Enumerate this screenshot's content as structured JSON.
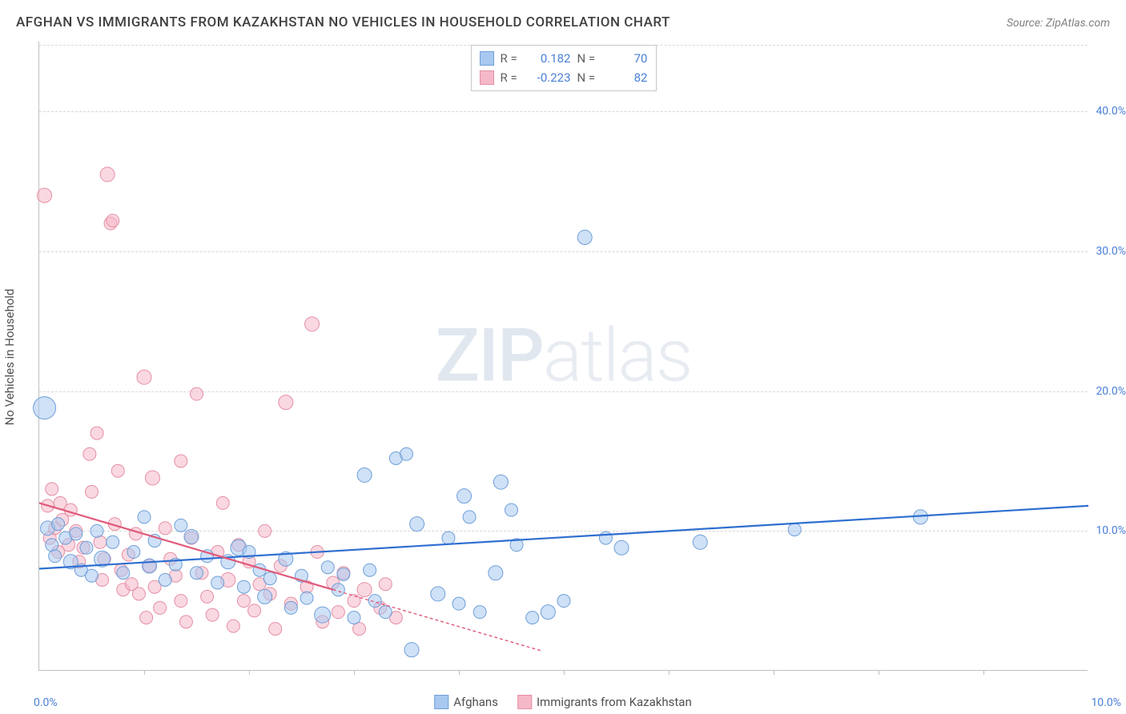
{
  "title": "AFGHAN VS IMMIGRANTS FROM KAZAKHSTAN NO VEHICLES IN HOUSEHOLD CORRELATION CHART",
  "source_label": "Source: ",
  "source_name": "ZipAtlas.com",
  "watermark_a": "ZIP",
  "watermark_b": "atlas",
  "y_axis_title": "No Vehicles in Household",
  "x_origin": "0.0%",
  "x_end": "10.0%",
  "chart": {
    "type": "scatter-correlation",
    "background_color": "#ffffff",
    "grid_color": "#d8d8d8",
    "axis_color": "#c0c0c0",
    "xlim": [
      0,
      10
    ],
    "ylim": [
      0,
      45
    ],
    "x_ticks_at": [
      1,
      2,
      3,
      4,
      5,
      6,
      7,
      8,
      9
    ],
    "y_ticks": [
      {
        "v": 10,
        "label": "10.0%"
      },
      {
        "v": 20,
        "label": "20.0%"
      },
      {
        "v": 30,
        "label": "30.0%"
      },
      {
        "v": 40,
        "label": "40.0%"
      }
    ],
    "series": {
      "afghans": {
        "label": "Afghans",
        "fill": "#a8c8f0",
        "stroke": "#6f9fd8",
        "fill_opacity": 0.55,
        "trend_color": "#2f6fd0",
        "trend": {
          "x1": 0,
          "y1": 7.3,
          "x2": 10,
          "y2": 11.8
        },
        "R_label": "R =",
        "R": "0.182",
        "N_label": "N =",
        "N": "70",
        "points": [
          [
            0.05,
            18.8,
            14
          ],
          [
            0.08,
            10.2,
            9
          ],
          [
            0.12,
            9.0,
            8
          ],
          [
            0.15,
            8.2,
            8
          ],
          [
            0.18,
            10.5,
            8
          ],
          [
            0.25,
            9.5,
            8
          ],
          [
            0.3,
            7.8,
            9
          ],
          [
            0.35,
            9.8,
            8
          ],
          [
            0.4,
            7.2,
            8
          ],
          [
            0.45,
            8.8,
            8
          ],
          [
            0.5,
            6.8,
            8
          ],
          [
            0.55,
            10.0,
            8
          ],
          [
            0.6,
            8.0,
            10
          ],
          [
            0.7,
            9.2,
            8
          ],
          [
            0.8,
            7.0,
            8
          ],
          [
            0.9,
            8.5,
            8
          ],
          [
            1.0,
            11.0,
            8
          ],
          [
            1.05,
            7.5,
            9
          ],
          [
            1.1,
            9.3,
            8
          ],
          [
            1.2,
            6.5,
            8
          ],
          [
            1.3,
            7.6,
            8
          ],
          [
            1.35,
            10.4,
            8
          ],
          [
            1.45,
            9.6,
            9
          ],
          [
            1.5,
            7.0,
            8
          ],
          [
            1.6,
            8.2,
            8
          ],
          [
            1.7,
            6.3,
            8
          ],
          [
            1.8,
            7.8,
            9
          ],
          [
            1.9,
            8.8,
            10
          ],
          [
            1.95,
            6.0,
            8
          ],
          [
            2.0,
            8.5,
            8
          ],
          [
            2.1,
            7.2,
            8
          ],
          [
            2.15,
            5.3,
            9
          ],
          [
            2.2,
            6.6,
            8
          ],
          [
            2.35,
            8.0,
            9
          ],
          [
            2.4,
            4.5,
            8
          ],
          [
            2.5,
            6.8,
            8
          ],
          [
            2.55,
            5.2,
            8
          ],
          [
            2.7,
            4.0,
            10
          ],
          [
            2.75,
            7.4,
            8
          ],
          [
            2.85,
            5.8,
            8
          ],
          [
            2.9,
            6.9,
            8
          ],
          [
            3.0,
            3.8,
            8
          ],
          [
            3.1,
            14.0,
            9
          ],
          [
            3.15,
            7.2,
            8
          ],
          [
            3.2,
            5.0,
            8
          ],
          [
            3.3,
            4.2,
            8
          ],
          [
            3.4,
            15.2,
            8
          ],
          [
            3.5,
            15.5,
            8
          ],
          [
            3.55,
            1.5,
            9
          ],
          [
            3.6,
            10.5,
            9
          ],
          [
            3.8,
            5.5,
            9
          ],
          [
            3.9,
            9.5,
            8
          ],
          [
            4.0,
            4.8,
            8
          ],
          [
            4.05,
            12.5,
            9
          ],
          [
            4.1,
            11.0,
            8
          ],
          [
            4.2,
            4.2,
            8
          ],
          [
            4.35,
            7.0,
            9
          ],
          [
            4.4,
            13.5,
            9
          ],
          [
            4.5,
            11.5,
            8
          ],
          [
            4.55,
            9.0,
            8
          ],
          [
            4.7,
            3.8,
            8
          ],
          [
            4.85,
            4.2,
            9
          ],
          [
            5.0,
            5.0,
            8
          ],
          [
            5.2,
            31.0,
            9
          ],
          [
            5.4,
            9.5,
            8
          ],
          [
            5.55,
            8.8,
            9
          ],
          [
            6.3,
            9.2,
            9
          ],
          [
            7.2,
            10.1,
            8
          ],
          [
            8.4,
            11.0,
            9
          ]
        ]
      },
      "kazakhstan": {
        "label": "Immigrants from Kazakhstan",
        "fill": "#f5b8c8",
        "stroke": "#e58fa5",
        "fill_opacity": 0.55,
        "trend_color": "#e05a7a",
        "trend_solid": {
          "x1": 0,
          "y1": 12.0,
          "x2": 2.8,
          "y2": 5.8
        },
        "trend_dash": {
          "x1": 2.8,
          "y1": 5.8,
          "x2": 4.8,
          "y2": 1.4
        },
        "R_label": "R =",
        "R": "-0.223",
        "N_label": "N =",
        "N": "82",
        "points": [
          [
            0.05,
            34.0,
            9
          ],
          [
            0.08,
            11.8,
            8
          ],
          [
            0.1,
            9.5,
            8
          ],
          [
            0.12,
            13.0,
            8
          ],
          [
            0.15,
            10.2,
            8
          ],
          [
            0.18,
            8.5,
            8
          ],
          [
            0.2,
            12.0,
            8
          ],
          [
            0.22,
            10.8,
            8
          ],
          [
            0.28,
            9.0,
            8
          ],
          [
            0.3,
            11.5,
            8
          ],
          [
            0.35,
            10.0,
            8
          ],
          [
            0.38,
            7.8,
            8
          ],
          [
            0.42,
            8.8,
            8
          ],
          [
            0.48,
            15.5,
            8
          ],
          [
            0.5,
            12.8,
            8
          ],
          [
            0.55,
            17.0,
            8
          ],
          [
            0.58,
            9.2,
            8
          ],
          [
            0.6,
            6.5,
            8
          ],
          [
            0.62,
            8.0,
            8
          ],
          [
            0.65,
            35.5,
            9
          ],
          [
            0.68,
            32.0,
            8
          ],
          [
            0.7,
            32.2,
            8
          ],
          [
            0.72,
            10.5,
            8
          ],
          [
            0.75,
            14.3,
            8
          ],
          [
            0.78,
            7.2,
            8
          ],
          [
            0.8,
            5.8,
            8
          ],
          [
            0.85,
            8.3,
            8
          ],
          [
            0.88,
            6.2,
            8
          ],
          [
            0.92,
            9.8,
            8
          ],
          [
            0.95,
            5.5,
            8
          ],
          [
            1.0,
            21.0,
            9
          ],
          [
            1.02,
            3.8,
            8
          ],
          [
            1.05,
            7.5,
            8
          ],
          [
            1.08,
            13.8,
            9
          ],
          [
            1.1,
            6.0,
            8
          ],
          [
            1.15,
            4.5,
            8
          ],
          [
            1.2,
            10.2,
            8
          ],
          [
            1.25,
            8.0,
            8
          ],
          [
            1.3,
            6.8,
            8
          ],
          [
            1.35,
            5.0,
            8
          ],
          [
            1.35,
            15.0,
            8
          ],
          [
            1.4,
            3.5,
            8
          ],
          [
            1.45,
            9.5,
            8
          ],
          [
            1.5,
            19.8,
            8
          ],
          [
            1.55,
            7.0,
            8
          ],
          [
            1.6,
            5.3,
            8
          ],
          [
            1.65,
            4.0,
            8
          ],
          [
            1.7,
            8.5,
            8
          ],
          [
            1.75,
            12.0,
            8
          ],
          [
            1.8,
            6.5,
            9
          ],
          [
            1.85,
            3.2,
            8
          ],
          [
            1.9,
            9.0,
            8
          ],
          [
            1.95,
            5.0,
            8
          ],
          [
            2.0,
            7.8,
            8
          ],
          [
            2.05,
            4.3,
            8
          ],
          [
            2.1,
            6.2,
            8
          ],
          [
            2.15,
            10.0,
            8
          ],
          [
            2.2,
            5.5,
            8
          ],
          [
            2.25,
            3.0,
            8
          ],
          [
            2.3,
            7.5,
            8
          ],
          [
            2.35,
            19.2,
            9
          ],
          [
            2.4,
            4.8,
            8
          ],
          [
            2.55,
            6.0,
            8
          ],
          [
            2.6,
            24.8,
            9
          ],
          [
            2.65,
            8.5,
            8
          ],
          [
            2.7,
            3.5,
            8
          ],
          [
            2.8,
            6.3,
            8
          ],
          [
            2.85,
            4.2,
            8
          ],
          [
            2.9,
            7.0,
            8
          ],
          [
            3.0,
            5.0,
            8
          ],
          [
            3.05,
            3.0,
            8
          ],
          [
            3.1,
            5.8,
            9
          ],
          [
            3.25,
            4.5,
            8
          ],
          [
            3.3,
            6.2,
            8
          ],
          [
            3.4,
            3.8,
            8
          ]
        ]
      }
    }
  }
}
